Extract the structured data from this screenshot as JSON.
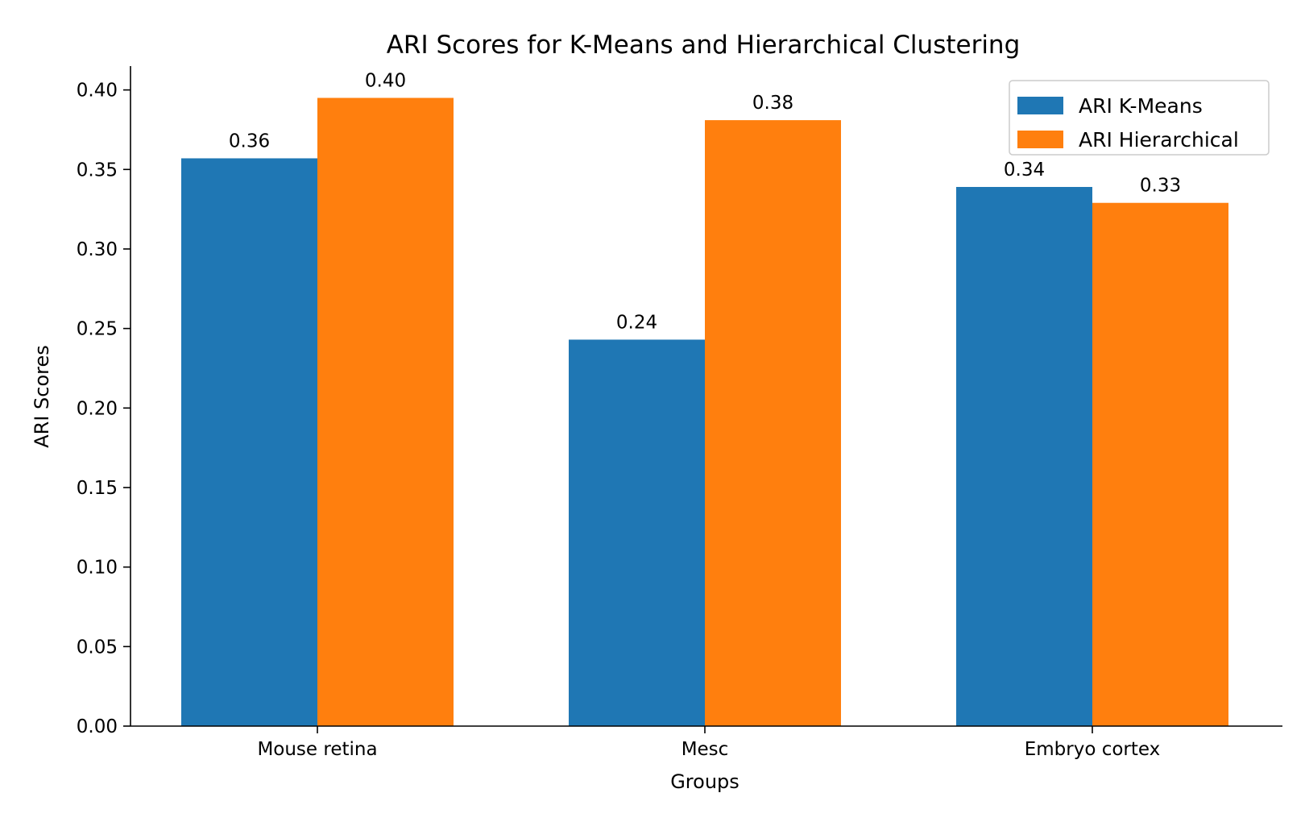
{
  "chart_data": {
    "type": "bar",
    "title": "ARI Scores for K-Means and Hierarchical Clustering",
    "xlabel": "Groups",
    "ylabel": "ARI Scores",
    "categories": [
      "Mouse retina",
      "Mesc",
      "Embryo cortex"
    ],
    "series": [
      {
        "name": "ARI K-Means",
        "color": "#1f77b4",
        "values": [
          0.357,
          0.243,
          0.339
        ],
        "labels": [
          "0.36",
          "0.24",
          "0.34"
        ]
      },
      {
        "name": "ARI Hierarchical",
        "color": "#ff7f0e",
        "values": [
          0.395,
          0.381,
          0.329
        ],
        "labels": [
          "0.40",
          "0.38",
          "0.33"
        ]
      }
    ],
    "ylim": [
      0,
      0.415
    ],
    "yticks": [
      0.0,
      0.05,
      0.1,
      0.15,
      0.2,
      0.25,
      0.3,
      0.35,
      0.4
    ],
    "ytick_labels": [
      "0.00",
      "0.05",
      "0.10",
      "0.15",
      "0.20",
      "0.25",
      "0.30",
      "0.35",
      "0.40"
    ],
    "grid": false,
    "legend_position": "top-right"
  }
}
